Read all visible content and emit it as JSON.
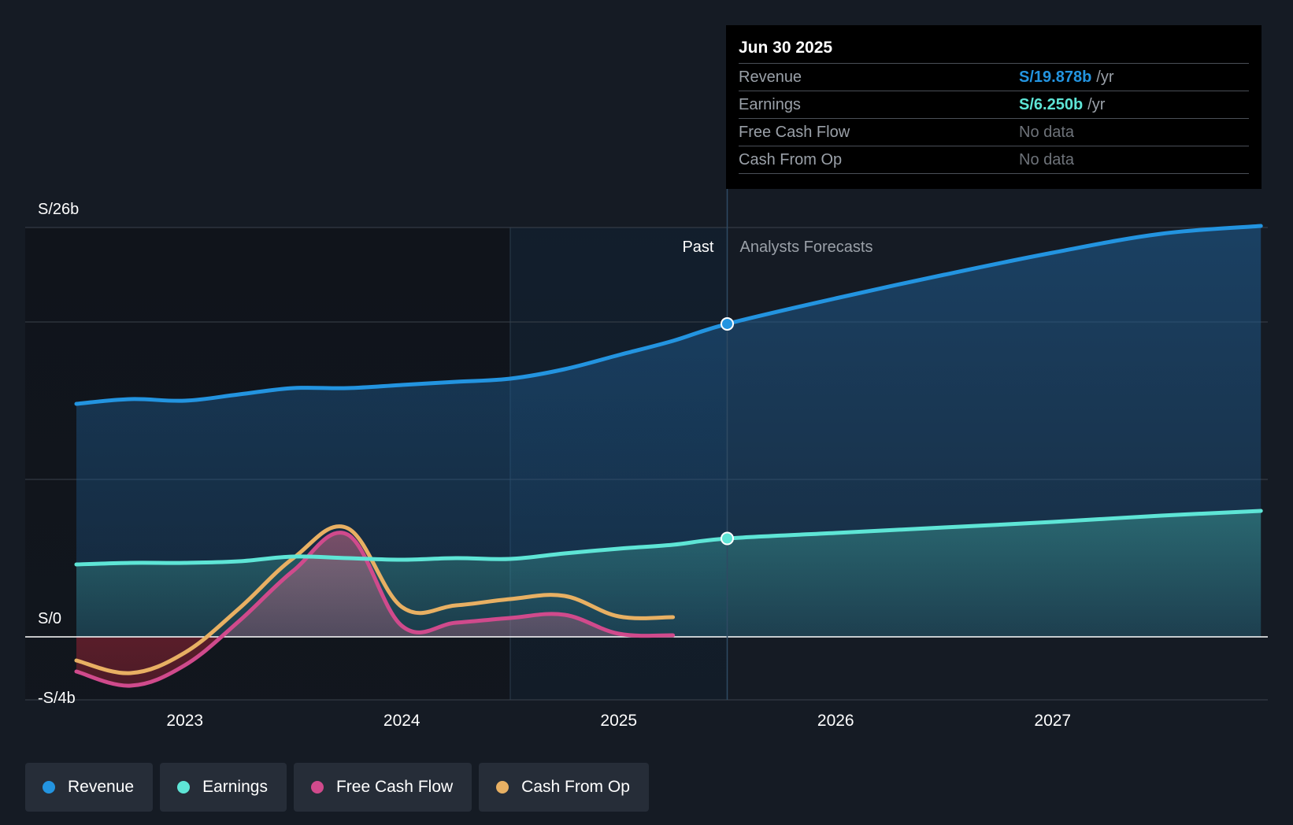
{
  "chart_data": {
    "type": "line",
    "y_unit": "S/ billions",
    "ylim": [
      -4,
      26
    ],
    "y_ticks": [
      {
        "value": 26,
        "label": "S/26b"
      },
      {
        "value": 0,
        "label": "S/0"
      },
      {
        "value": -4,
        "label": "-S/4b"
      }
    ],
    "xlim": [
      2022.5,
      2027.96
    ],
    "x_ticks": [
      {
        "value": 2023,
        "label": "2023"
      },
      {
        "value": 2024,
        "label": "2024"
      },
      {
        "value": 2025,
        "label": "2025"
      },
      {
        "value": 2026,
        "label": "2026"
      },
      {
        "value": 2027,
        "label": "2027"
      }
    ],
    "past_label": "Past",
    "forecast_label": "Analysts Forecasts",
    "divider_x": 2025.5,
    "highlight_start_x": 2024.5,
    "series": [
      {
        "name": "Revenue",
        "color": "#2394e0",
        "fill": true,
        "points": [
          [
            2022.5,
            14.8
          ],
          [
            2022.75,
            15.1
          ],
          [
            2023.0,
            15.0
          ],
          [
            2023.25,
            15.4
          ],
          [
            2023.5,
            15.8
          ],
          [
            2023.75,
            15.8
          ],
          [
            2024.0,
            16.0
          ],
          [
            2024.25,
            16.2
          ],
          [
            2024.5,
            16.4
          ],
          [
            2024.75,
            17.0
          ],
          [
            2025.0,
            17.9
          ],
          [
            2025.25,
            18.8
          ],
          [
            2025.5,
            19.878
          ],
          [
            2026.0,
            21.5
          ],
          [
            2026.5,
            23.0
          ],
          [
            2027.0,
            24.4
          ],
          [
            2027.5,
            25.6
          ],
          [
            2027.96,
            26.1
          ]
        ],
        "forecast_from": 2025.5
      },
      {
        "name": "Earnings",
        "color": "#5ee5d6",
        "fill": true,
        "points": [
          [
            2022.5,
            4.6
          ],
          [
            2022.75,
            4.7
          ],
          [
            2023.0,
            4.7
          ],
          [
            2023.25,
            4.8
          ],
          [
            2023.5,
            5.1
          ],
          [
            2023.75,
            5.0
          ],
          [
            2024.0,
            4.9
          ],
          [
            2024.25,
            5.0
          ],
          [
            2024.5,
            4.95
          ],
          [
            2024.75,
            5.3
          ],
          [
            2025.0,
            5.6
          ],
          [
            2025.25,
            5.85
          ],
          [
            2025.5,
            6.25
          ],
          [
            2026.0,
            6.6
          ],
          [
            2026.5,
            6.95
          ],
          [
            2027.0,
            7.3
          ],
          [
            2027.5,
            7.7
          ],
          [
            2027.96,
            8.0
          ]
        ],
        "forecast_from": 2025.5
      },
      {
        "name": "Free Cash Flow",
        "color": "#d04a8c",
        "fill": true,
        "points": [
          [
            2022.5,
            -2.2
          ],
          [
            2022.75,
            -3.1
          ],
          [
            2023.0,
            -1.8
          ],
          [
            2023.25,
            1.0
          ],
          [
            2023.5,
            4.2
          ],
          [
            2023.75,
            6.5
          ],
          [
            2024.0,
            0.7
          ],
          [
            2024.25,
            0.9
          ],
          [
            2024.5,
            1.2
          ],
          [
            2024.75,
            1.4
          ],
          [
            2025.0,
            0.2
          ],
          [
            2025.25,
            0.1
          ]
        ]
      },
      {
        "name": "Cash From Op",
        "color": "#e8b063",
        "fill": false,
        "points": [
          [
            2022.5,
            -1.5
          ],
          [
            2022.75,
            -2.3
          ],
          [
            2023.0,
            -1.0
          ],
          [
            2023.25,
            1.8
          ],
          [
            2023.5,
            5.0
          ],
          [
            2023.75,
            6.9
          ],
          [
            2024.0,
            1.9
          ],
          [
            2024.25,
            2.0
          ],
          [
            2024.5,
            2.4
          ],
          [
            2024.75,
            2.6
          ],
          [
            2025.0,
            1.3
          ],
          [
            2025.25,
            1.25
          ]
        ]
      }
    ],
    "markers": [
      {
        "series": "Revenue",
        "x": 2025.5,
        "y": 19.878
      },
      {
        "series": "Earnings",
        "x": 2025.5,
        "y": 6.25
      }
    ]
  },
  "tooltip": {
    "date": "Jun 30 2025",
    "rows": [
      {
        "label": "Revenue",
        "value": "S/19.878b",
        "unit": "/yr",
        "color": "#2394e0"
      },
      {
        "label": "Earnings",
        "value": "S/6.250b",
        "unit": "/yr",
        "color": "#5ee5d6"
      },
      {
        "label": "Free Cash Flow",
        "nodata": "No data"
      },
      {
        "label": "Cash From Op",
        "nodata": "No data"
      }
    ]
  },
  "legend": [
    {
      "label": "Revenue",
      "color": "#2394e0"
    },
    {
      "label": "Earnings",
      "color": "#5ee5d6"
    },
    {
      "label": "Free Cash Flow",
      "color": "#d04a8c"
    },
    {
      "label": "Cash From Op",
      "color": "#e8b063"
    }
  ]
}
